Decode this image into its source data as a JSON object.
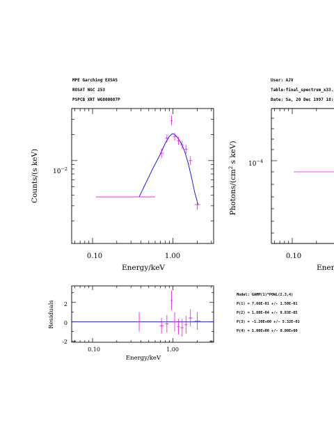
{
  "header_left": [
    "MPE Garching EXSAS",
    "ROSAT NGC 253",
    "PSPCB XRT WG800087P"
  ],
  "header_right": [
    "User: AJV",
    "Table:final_spectrum_x33.",
    "Date: Sa, 20 Dec 1997 18:"
  ],
  "model_text": [
    "Model: GAMM(1)*POWL(2,3,4)",
    "P(1) = 7.66E-01 +/- 1.50E-01",
    "P(2) = 1.88E-04 +/- 9.83E-05",
    "P(3) = -1.20E+00 +/- 5.32E-01",
    "P(4) = 1.00E+00 +/- 0.00E+00"
  ],
  "colors": {
    "data": "#ff00ff",
    "model": "#0000ff",
    "axes": "#000000"
  },
  "chart_data": [
    {
      "type": "scatter",
      "x_scale": "log",
      "y_scale": "log",
      "xlabel": "Energy/keV",
      "ylabel": "Counts/(s keV)",
      "xlim": [
        0.055,
        3.2
      ],
      "ylim": [
        0.0011,
        0.04
      ],
      "x_tick_labels": [
        "0.10",
        "1.00"
      ],
      "y_tick_labels": [
        "10-2"
      ],
      "series": [
        {
          "points": [
            {
              "x": 0.24,
              "xlo": 0.11,
              "xhi": 0.6,
              "y": 0.0038,
              "ylo": 0.0038,
              "yhi": 0.0038
            },
            {
              "x": 0.72,
              "xlo": 0.68,
              "xhi": 0.77,
              "y": 0.0122,
              "ylo": 0.0107,
              "yhi": 0.0139
            },
            {
              "x": 0.84,
              "xlo": 0.8,
              "xhi": 0.88,
              "y": 0.0182,
              "ylo": 0.0163,
              "yhi": 0.02
            },
            {
              "x": 0.96,
              "xlo": 0.93,
              "xhi": 0.99,
              "y": 0.029,
              "ylo": 0.0255,
              "yhi": 0.033
            },
            {
              "x": 1.05,
              "xlo": 1.0,
              "xhi": 1.1,
              "y": 0.019,
              "ylo": 0.017,
              "yhi": 0.021
            },
            {
              "x": 1.17,
              "xlo": 1.12,
              "xhi": 1.22,
              "y": 0.017,
              "ylo": 0.0152,
              "yhi": 0.0188
            },
            {
              "x": 1.3,
              "xlo": 1.24,
              "xhi": 1.36,
              "y": 0.0152,
              "ylo": 0.0137,
              "yhi": 0.017
            },
            {
              "x": 1.45,
              "xlo": 1.38,
              "xhi": 1.52,
              "y": 0.0135,
              "ylo": 0.012,
              "yhi": 0.0152
            },
            {
              "x": 1.65,
              "xlo": 1.56,
              "xhi": 1.75,
              "y": 0.01,
              "ylo": 0.0088,
              "yhi": 0.0112
            },
            {
              "x": 2.0,
              "xlo": 1.85,
              "xhi": 2.2,
              "y": 0.0031,
              "ylo": 0.0027,
              "yhi": 0.0035
            }
          ]
        }
      ],
      "model_curve": {
        "x": [
          0.38,
          0.55,
          0.7,
          0.8,
          0.9,
          0.98,
          1.05,
          1.12,
          1.2,
          1.3,
          1.42,
          1.55,
          1.7,
          1.85,
          2.05
        ],
        "y": [
          0.0038,
          0.0078,
          0.012,
          0.0158,
          0.019,
          0.0205,
          0.02,
          0.0188,
          0.0172,
          0.015,
          0.0122,
          0.0092,
          0.0064,
          0.0044,
          0.0031
        ]
      }
    },
    {
      "type": "scatter",
      "x_scale": "log",
      "y_scale": "linear",
      "xlabel": "Energy/keV",
      "ylabel": "Residuals",
      "xlim": [
        0.055,
        3.2
      ],
      "ylim": [
        -2.1,
        3.7
      ],
      "x_tick_labels": [
        "0.10",
        "1.00"
      ],
      "y_tick_labels": [
        "2",
        "0",
        "-2"
      ],
      "series": [
        {
          "points": [
            {
              "x": 0.38,
              "xlo": 0.37,
              "xhi": 0.39,
              "y": 0.0,
              "ylo": -1.0,
              "yhi": 1.0
            },
            {
              "x": 0.72,
              "xlo": 0.68,
              "xhi": 0.77,
              "y": -0.4,
              "ylo": -1.2,
              "yhi": 0.4
            },
            {
              "x": 0.84,
              "xlo": 0.8,
              "xhi": 0.88,
              "y": -0.2,
              "ylo": -1.1,
              "yhi": 0.7
            },
            {
              "x": 0.96,
              "xlo": 0.93,
              "xhi": 0.99,
              "y": 2.2,
              "ylo": 1.2,
              "yhi": 3.2
            },
            {
              "x": 1.05,
              "xlo": 1.0,
              "xhi": 1.1,
              "y": 0.0,
              "ylo": -1.0,
              "yhi": 1.0
            },
            {
              "x": 1.17,
              "xlo": 1.12,
              "xhi": 1.22,
              "y": -0.5,
              "ylo": -1.3,
              "yhi": 0.3
            },
            {
              "x": 1.3,
              "xlo": 1.24,
              "xhi": 1.36,
              "y": -0.6,
              "ylo": -1.5,
              "yhi": 0.3
            },
            {
              "x": 1.45,
              "xlo": 1.38,
              "xhi": 1.52,
              "y": -0.3,
              "ylo": -1.2,
              "yhi": 0.6
            },
            {
              "x": 1.65,
              "xlo": 1.56,
              "xhi": 1.75,
              "y": 0.4,
              "ylo": -0.5,
              "yhi": 1.3
            },
            {
              "x": 2.0,
              "xlo": 1.85,
              "xhi": 2.2,
              "y": 0.1,
              "ylo": -0.8,
              "yhi": 1.0
            }
          ]
        }
      ],
      "reference_line_y": 0
    },
    {
      "type": "line",
      "x_scale": "log",
      "y_scale": "log",
      "xlabel": "Ener",
      "ylabel": "Photons/(cm2  s  keV)",
      "x_tick_labels": [
        "0.10"
      ],
      "y_tick_labels": [
        "10-4"
      ],
      "series": [
        {
          "points": [
            {
              "x": 0.2,
              "xlo": 0.11,
              "xhi": 0.4,
              "y": 0.0001,
              "ylo": 0.0001,
              "yhi": 0.0001
            }
          ]
        }
      ]
    }
  ]
}
